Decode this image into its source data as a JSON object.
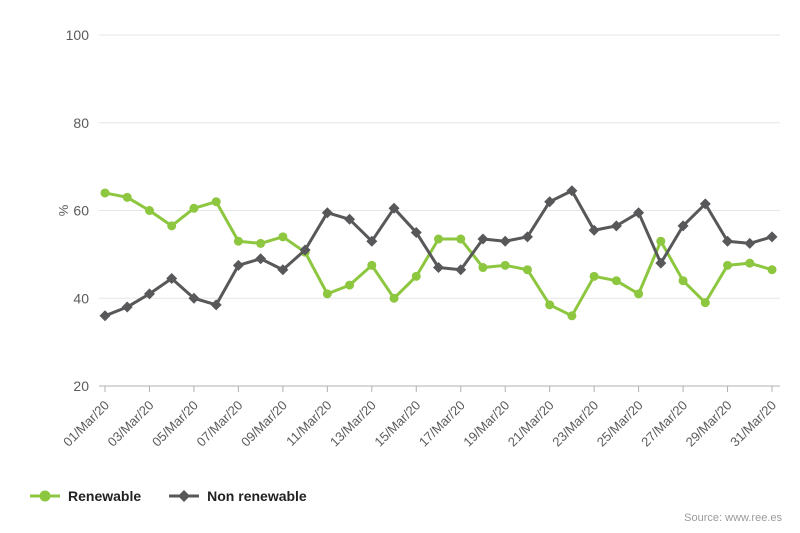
{
  "chart_data": {
    "type": "line",
    "title": "",
    "ylabel": "%",
    "xlabel": "",
    "ylim": [
      20,
      100
    ],
    "yticks": [
      20,
      40,
      60,
      80,
      100
    ],
    "grid": true,
    "legend_position": "bottom-left",
    "x": [
      "01/Mar/20",
      "02/Mar/20",
      "03/Mar/20",
      "04/Mar/20",
      "05/Mar/20",
      "06/Mar/20",
      "07/Mar/20",
      "08/Mar/20",
      "09/Mar/20",
      "10/Mar/20",
      "11/Mar/20",
      "12/Mar/20",
      "13/Mar/20",
      "14/Mar/20",
      "15/Mar/20",
      "16/Mar/20",
      "17/Mar/20",
      "18/Mar/20",
      "19/Mar/20",
      "20/Mar/20",
      "21/Mar/20",
      "22/Mar/20",
      "23/Mar/20",
      "24/Mar/20",
      "25/Mar/20",
      "26/Mar/20",
      "27/Mar/20",
      "28/Mar/20",
      "29/Mar/20",
      "30/Mar/20",
      "31/Mar/20"
    ],
    "x_tick_every": 2,
    "series": [
      {
        "name": "Renewable",
        "color": "#8dc63f",
        "marker": "circle",
        "values": [
          64,
          63,
          60,
          56.5,
          60.5,
          62,
          53,
          52.5,
          54,
          50.5,
          41,
          43,
          47.5,
          40,
          45,
          53.5,
          53.5,
          47,
          47.5,
          46.5,
          38.5,
          36,
          45,
          44,
          41,
          53,
          44,
          39,
          47.5,
          48,
          46.5
        ]
      },
      {
        "name": "Non renewable",
        "color": "#58585a",
        "marker": "diamond",
        "values": [
          36,
          38,
          41,
          44.5,
          40,
          38.5,
          47.5,
          49,
          46.5,
          51,
          59.5,
          58,
          53,
          60.5,
          55,
          47,
          46.5,
          53.5,
          53,
          54,
          62,
          64.5,
          55.5,
          56.5,
          59.5,
          48,
          56.5,
          61.5,
          53,
          52.5,
          54
        ]
      }
    ]
  },
  "footer": {
    "source": "Source: www.ree.es"
  },
  "colors": {
    "grid": "#e6e6e6",
    "axis": "#b0b0b0",
    "tick_label": "#5b5b5b"
  }
}
